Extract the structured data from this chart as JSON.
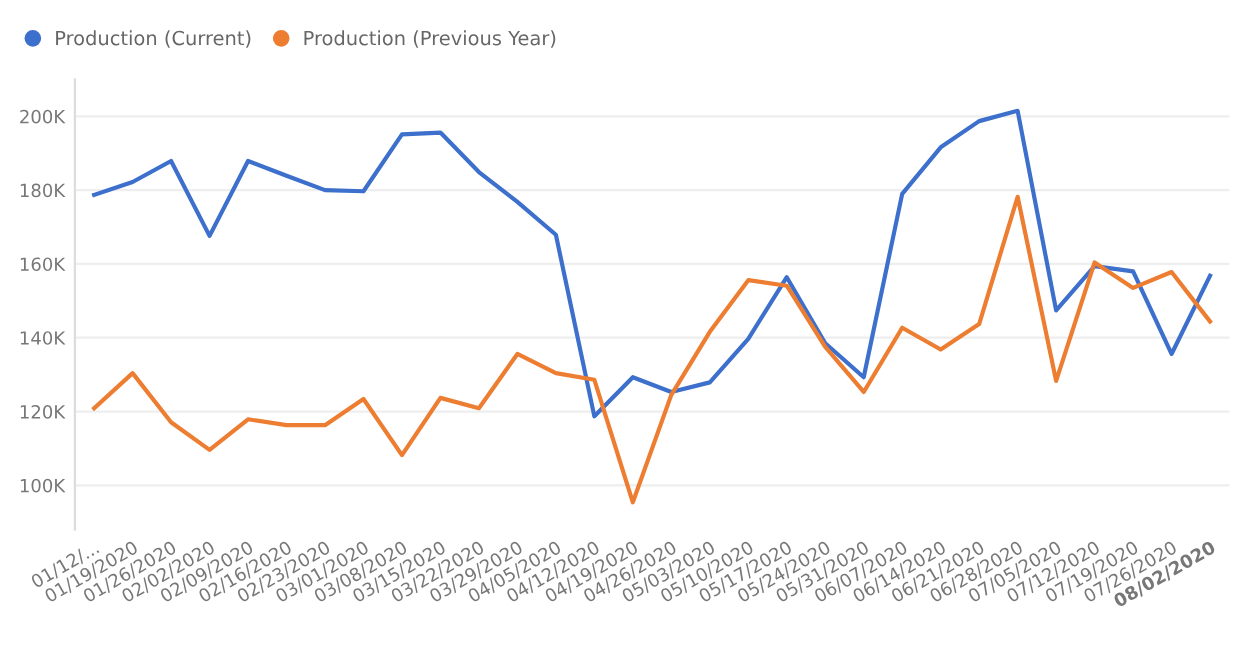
{
  "chart_data": {
    "type": "line",
    "categories": [
      "01/12/...",
      "01/19/2020",
      "01/26/2020",
      "02/02/2020",
      "02/09/2020",
      "02/16/2020",
      "02/23/2020",
      "03/01/2020",
      "03/08/2020",
      "03/15/2020",
      "03/22/2020",
      "03/29/2020",
      "04/05/2020",
      "04/12/2020",
      "04/19/2020",
      "04/26/2020",
      "05/03/2020",
      "05/10/2020",
      "05/17/2020",
      "05/24/2020",
      "05/31/2020",
      "06/07/2020",
      "06/14/2020",
      "06/21/2020",
      "06/28/2020",
      "07/05/2020",
      "07/12/2020",
      "07/19/2020",
      "07/26/2020",
      "08/02/2020"
    ],
    "series": [
      {
        "name": "Production (Current)",
        "color": "#3d6fcc",
        "values": [
          178700,
          182200,
          187900,
          167600,
          187900,
          183900,
          180000,
          179700,
          195100,
          195600,
          184900,
          176800,
          167900,
          118700,
          129300,
          125300,
          127900,
          139700,
          156400,
          138500,
          129300,
          179000,
          191600,
          198700,
          201500,
          147400,
          159400,
          158000,
          135600,
          156800
        ]
      },
      {
        "name": "Production (Previous Year)",
        "color": "#ed7d31",
        "values": [
          120900,
          130400,
          117100,
          109600,
          117900,
          116300,
          116300,
          123400,
          108200,
          123700,
          120900,
          135600,
          130400,
          128600,
          95400,
          124500,
          141600,
          155600,
          154100,
          137500,
          125300,
          142700,
          136800,
          143700,
          178200,
          128300,
          160400,
          153500,
          157800,
          144400
        ]
      }
    ],
    "ylim": [
      88000,
      210000
    ],
    "yticks": [
      {
        "value": 100000,
        "label": "100K"
      },
      {
        "value": 120000,
        "label": "120K"
      },
      {
        "value": 140000,
        "label": "140K"
      },
      {
        "value": 160000,
        "label": "160K"
      },
      {
        "value": 180000,
        "label": "180K"
      },
      {
        "value": 200000,
        "label": "200K"
      }
    ],
    "grid": "y",
    "legend": "top left",
    "marker": "none",
    "line_style": "solid"
  }
}
